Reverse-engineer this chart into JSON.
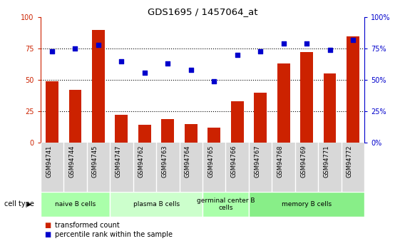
{
  "title": "GDS1695 / 1457064_at",
  "categories": [
    "GSM94741",
    "GSM94744",
    "GSM94745",
    "GSM94747",
    "GSM94762",
    "GSM94763",
    "GSM94764",
    "GSM94765",
    "GSM94766",
    "GSM94767",
    "GSM94768",
    "GSM94769",
    "GSM94771",
    "GSM94772"
  ],
  "bar_values": [
    49,
    42,
    90,
    22,
    14,
    19,
    15,
    12,
    33,
    40,
    63,
    72,
    55,
    85
  ],
  "dot_values": [
    73,
    75,
    78,
    65,
    56,
    63,
    58,
    49,
    70,
    73,
    79,
    79,
    74,
    82
  ],
  "bar_color": "#cc2200",
  "dot_color": "#0000cc",
  "ylim": [
    0,
    100
  ],
  "yticks": [
    0,
    25,
    50,
    75,
    100
  ],
  "grid_lines": [
    25,
    50,
    75
  ],
  "cell_type_groups": [
    {
      "label": "naive B cells",
      "start": 0,
      "end": 3,
      "color": "#aaffaa"
    },
    {
      "label": "plasma B cells",
      "start": 3,
      "end": 7,
      "color": "#ccffcc"
    },
    {
      "label": "germinal center B\ncells",
      "start": 7,
      "end": 9,
      "color": "#aaffaa"
    },
    {
      "label": "memory B cells",
      "start": 9,
      "end": 14,
      "color": "#88ee88"
    }
  ],
  "left_axis_color": "#cc2200",
  "right_axis_color": "#0000cc",
  "background_color": "#ffffff",
  "plot_bg_color": "#ffffff",
  "xtick_bg_color": "#d8d8d8",
  "legend_bar_label": "transformed count",
  "legend_dot_label": "percentile rank within the sample"
}
